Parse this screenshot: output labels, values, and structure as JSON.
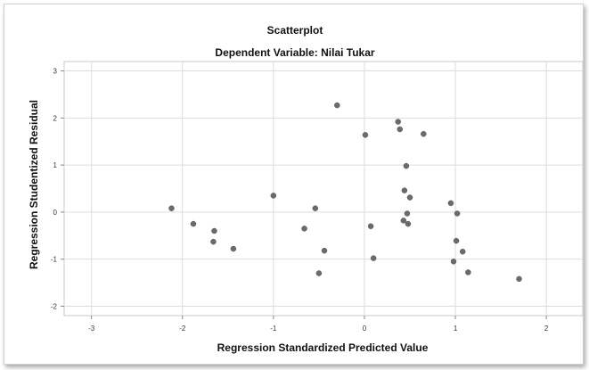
{
  "chart_data": {
    "type": "scatter",
    "title": "Scatterplot",
    "subtitle": "Dependent Variable: Nilai Tukar",
    "xlabel": "Regression Standardized Predicted Value",
    "ylabel": "Regression Studentized Residual",
    "xlim": [
      -3.3,
      2.4
    ],
    "ylim": [
      -2.2,
      3.2
    ],
    "xticks": [
      -3,
      -2,
      -1,
      0,
      1,
      2
    ],
    "yticks": [
      -2,
      -1,
      0,
      1,
      2,
      3
    ],
    "grid": true,
    "point_color": "#6b6b6b",
    "points": [
      {
        "x": -2.12,
        "y": 0.08
      },
      {
        "x": -1.88,
        "y": -0.25
      },
      {
        "x": -1.65,
        "y": -0.4
      },
      {
        "x": -1.66,
        "y": -0.63
      },
      {
        "x": -1.44,
        "y": -0.78
      },
      {
        "x": -1.0,
        "y": 0.35
      },
      {
        "x": -0.66,
        "y": -0.35
      },
      {
        "x": -0.54,
        "y": 0.08
      },
      {
        "x": -0.44,
        "y": -0.82
      },
      {
        "x": -0.5,
        "y": -1.3
      },
      {
        "x": -0.3,
        "y": 2.27
      },
      {
        "x": 0.01,
        "y": 1.64
      },
      {
        "x": 0.07,
        "y": -0.3
      },
      {
        "x": 0.1,
        "y": -0.98
      },
      {
        "x": 0.37,
        "y": 1.92
      },
      {
        "x": 0.39,
        "y": 1.76
      },
      {
        "x": 0.65,
        "y": 1.66
      },
      {
        "x": 0.46,
        "y": 0.98
      },
      {
        "x": 0.44,
        "y": 0.46
      },
      {
        "x": 0.5,
        "y": 0.31
      },
      {
        "x": 0.47,
        "y": -0.03
      },
      {
        "x": 0.43,
        "y": -0.18
      },
      {
        "x": 0.48,
        "y": -0.25
      },
      {
        "x": 0.95,
        "y": 0.19
      },
      {
        "x": 1.02,
        "y": -0.03
      },
      {
        "x": 1.01,
        "y": -0.61
      },
      {
        "x": 1.08,
        "y": -0.84
      },
      {
        "x": 0.98,
        "y": -1.05
      },
      {
        "x": 1.14,
        "y": -1.28
      },
      {
        "x": 1.7,
        "y": -1.42
      }
    ]
  }
}
